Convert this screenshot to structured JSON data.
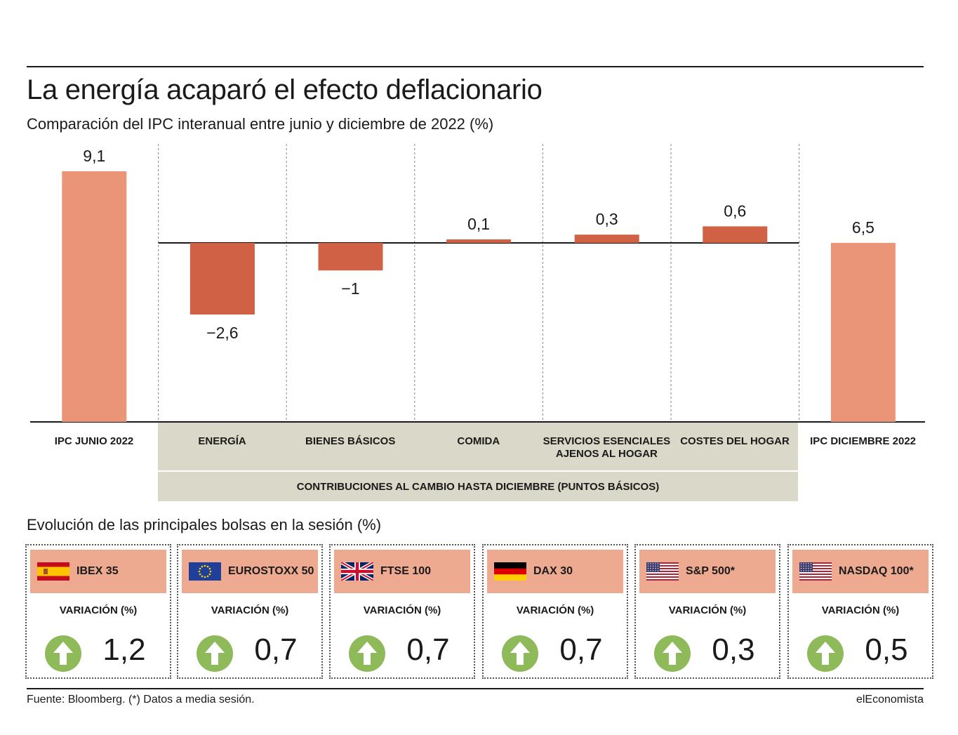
{
  "header": {
    "title": "La energía acaparó el efecto deflacionario",
    "subtitle": "Comparación del IPC interanual entre junio y diciembre de 2022 (%)"
  },
  "colors": {
    "total_bar": "#ea9577",
    "contribution_bar": "#d06145",
    "band": "#dad8c8",
    "card_header": "#eeaa90",
    "arrow_green": "#8fba5a"
  },
  "chart_data": {
    "type": "bar",
    "variant": "waterfall",
    "categories": [
      "IPC JUNIO 2022",
      "ENERGÍA",
      "BIENES BÁSICOS",
      "COMIDA",
      "SERVICIOS ESENCIALES AJENOS AL HOGAR",
      "COSTES DEL HOGAR",
      "IPC DICIEMBRE 2022"
    ],
    "values": [
      9.1,
      -2.6,
      -1,
      0.1,
      0.3,
      0.6,
      6.5
    ],
    "value_labels": [
      "9,1",
      "−2,6",
      "−1",
      "0,1",
      "0,3",
      "0,6",
      "6,5"
    ],
    "bar_kind": [
      "total",
      "contribution",
      "contribution",
      "contribution",
      "contribution",
      "contribution",
      "total"
    ],
    "group_label": "CONTRIBUCIONES AL CAMBIO HASTA DICIEMBRE (PUNTOS BÁSICOS)",
    "grid": false,
    "legend": "none"
  },
  "categories_display": [
    [
      "IPC JUNIO 2022"
    ],
    [
      "ENERGÍA"
    ],
    [
      "BIENES BÁSICOS"
    ],
    [
      "COMIDA"
    ],
    [
      "SERVICIOS ESENCIALES",
      "AJENOS AL HOGAR"
    ],
    [
      "COSTES DEL HOGAR"
    ],
    [
      "IPC DICIEMBRE 2022"
    ]
  ],
  "bolsas": {
    "title": "Evolución de las principales bolsas en la sesión (%)",
    "variation_label": "VARIACIÓN (%)",
    "items": [
      {
        "name": "IBEX 35",
        "flag": "spain-flag-icon",
        "value": "1,2",
        "direction": "up-arrow-icon"
      },
      {
        "name": "EUROSTOXX 50",
        "flag": "eu-flag-icon",
        "value": "0,7",
        "direction": "up-arrow-icon"
      },
      {
        "name": "FTSE 100",
        "flag": "uk-flag-icon",
        "value": "0,7",
        "direction": "up-arrow-icon"
      },
      {
        "name": "DAX 30",
        "flag": "germany-flag-icon",
        "value": "0,7",
        "direction": "up-arrow-icon"
      },
      {
        "name": "S&P 500*",
        "flag": "usa-flag-icon",
        "value": "0,3",
        "direction": "up-arrow-icon"
      },
      {
        "name": "NASDAQ 100*",
        "flag": "usa-flag-icon",
        "value": "0,5",
        "direction": "up-arrow-icon"
      }
    ]
  },
  "footer": {
    "source": "Fuente: Bloomberg. (*) Datos a media sesión.",
    "brand": "elEconomista"
  }
}
